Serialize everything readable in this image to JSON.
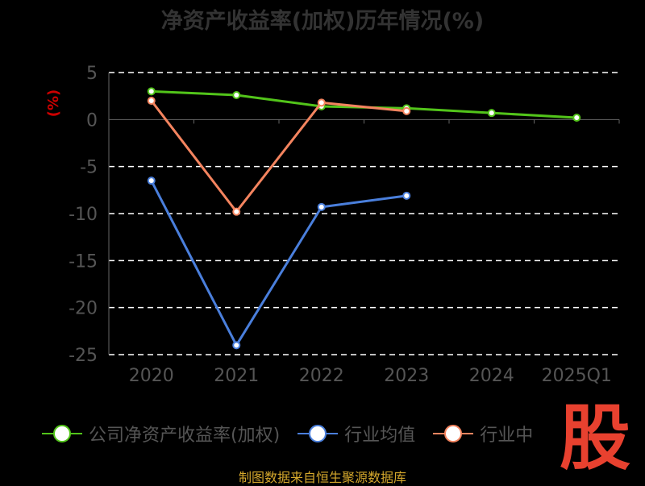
{
  "chart_data": {
    "type": "line",
    "title": "净资产收益率(加权)历年情况(%)",
    "ylabel": "(%)",
    "categories": [
      "2020",
      "2021",
      "2022",
      "2023",
      "2024",
      "2025Q1"
    ],
    "ylim": [
      -25,
      5
    ],
    "yticks": [
      5,
      0,
      -5,
      -10,
      -15,
      -20,
      -25
    ],
    "grid": true,
    "legend_position": "bottom",
    "series": [
      {
        "name": "公司净资产收益率(加权)",
        "color": "#52c41a",
        "values": [
          3.0,
          2.6,
          1.4,
          1.2,
          0.7,
          0.2
        ]
      },
      {
        "name": "行业均值",
        "color": "#4a7fdc",
        "values": [
          -6.5,
          -24.0,
          -9.3,
          -8.1,
          null,
          null
        ]
      },
      {
        "name": "行业中位数",
        "color": "#f4845f",
        "values": [
          2.0,
          -9.8,
          1.8,
          0.9,
          null,
          null
        ]
      }
    ]
  },
  "legend_labels": [
    "公司净资产收益率(加权)",
    "行业均值",
    "行业中"
  ],
  "source": "制图数据来自恒生聚源数据库",
  "watermark": "股"
}
